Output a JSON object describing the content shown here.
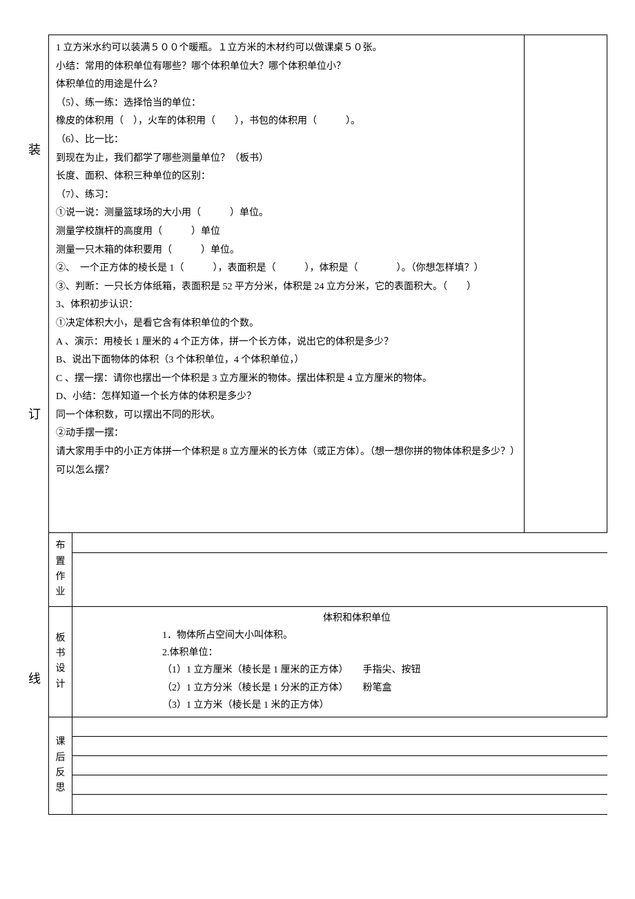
{
  "margin": {
    "top": "装",
    "mid": "订",
    "bot": "线"
  },
  "main": {
    "lines": [
      "1 立方米水约可以装满５００个暖瓶。１立方米的木材约可以做课桌５０张。",
      "小结：常用的体积单位有哪些？哪个体积单位大？哪个体积单位小？",
      "体积单位的用途是什么？",
      "（5）、练一练：选择恰当的单位：",
      "橡皮的体积用（　），火车的体积用（　　），书包的体积用（　　　）。",
      "（6）、比一比：",
      "到现在为止，我们都学了哪些测量单位？（板书）",
      "长度、面积、体积三种单位的区别：",
      "（7）、练习：",
      "①说一说：测量篮球场的大小用（　　　）单位。",
      "测量学校旗杆的高度用（　　　）单位",
      "测量一只木箱的体积要用（　　　）单位。",
      "②、　一个正方体的棱长是 1（　　　），表面积是（　　　），体积是（　　　　）。（你想怎样填？）",
      "③、判断：一只长方体纸箱，表面积是 52 平方分米，体积是 24 立方分米，它的表面积大。（　　）",
      "3、体积初步认识：",
      "①决定体积大小，是看它含有体积单位的个数。",
      "A 、演示：用棱长 1 厘米的 4 个正方体，拼一个长方体，说出它的体积是多少？",
      "B、说出下面物体的体积（3 个体积单位，4 个体积单位，）",
      "C 、摆一摆：请你也摆出一个体积是 3 立方厘米的物体。摆出体积是 4 立方厘米的物体。",
      "D、小结：怎样知道一个长方体的体积是多少？",
      "同一个体积数，可以摆出不同的形状。",
      "②动手摆一摆：",
      "请大家用手中的小正方体拼一个体积是 8 立方厘米的长方体（或正方体）。（想一想你拼的物体体积是多少？）可以怎么摆？"
    ]
  },
  "sections": {
    "homework_label": "布置作业",
    "board_label": "板书设计",
    "reflect_label": "课后反思"
  },
  "board": {
    "title": "体积和体积单位",
    "l1": "1．物体所占空间大小叫体积。",
    "l2": "2.体积单位：",
    "l3": "（1）1 立方厘米（棱长是 1 厘米的正方体）　　手指尖、按钮",
    "l4": "（2）1 立方分米（棱长是 1 分米的正方体）　　粉笔盒",
    "l5": "（3）1 立方米（棱长是 1 米的正方体）"
  }
}
